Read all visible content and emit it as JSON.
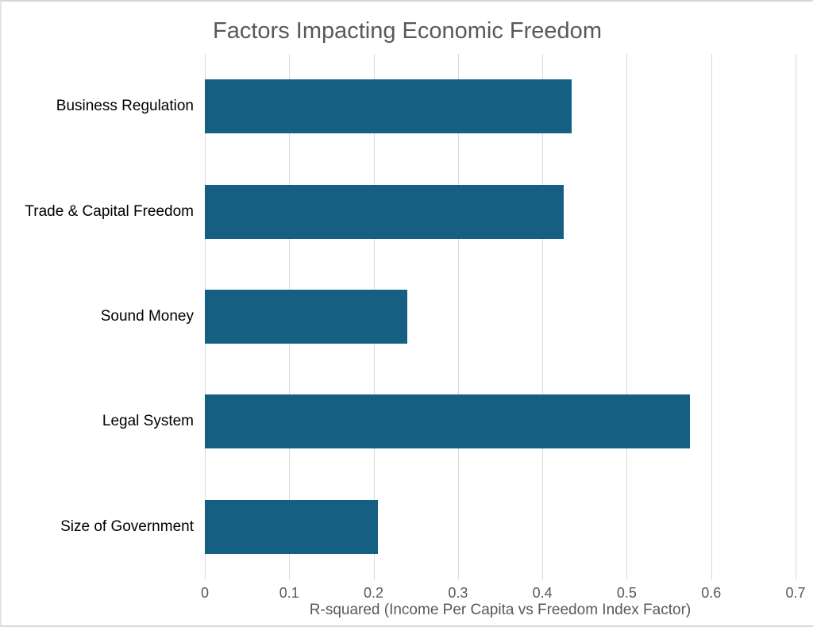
{
  "chart_data": {
    "type": "bar",
    "orientation": "horizontal",
    "title": "Factors Impacting Economic Freedom",
    "categories": [
      "Business Regulation",
      "Trade & Capital Freedom",
      "Sound Money",
      "Legal System",
      "Size of Government"
    ],
    "values": [
      0.435,
      0.425,
      0.24,
      0.575,
      0.205
    ],
    "xlabel": "R-squared (Income Per Capita vs Freedom Index Factor)",
    "ylabel": "",
    "xlim": [
      0,
      0.7
    ],
    "x_ticks": [
      "0",
      "0.1",
      "0.2",
      "0.3",
      "0.4",
      "0.5",
      "0.6",
      "0.7"
    ],
    "grid": "vertical",
    "legend": "none",
    "colors": {
      "bar": "#156082",
      "title_text": "#595959",
      "axis_text": "#595959",
      "category_text": "#000000",
      "gridline": "#d9d9d9",
      "background": "#ffffff"
    }
  }
}
